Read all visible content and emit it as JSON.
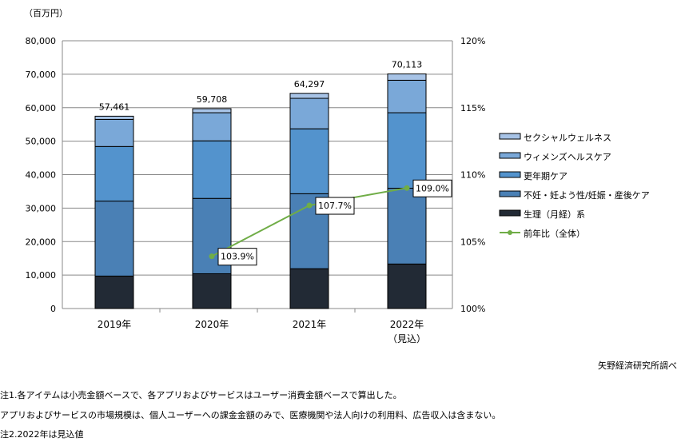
{
  "chart_data": {
    "type": "bar",
    "stacked": true,
    "yunit": "（百万円）",
    "categories": [
      "2019年",
      "2020年",
      "2021年",
      "2022年"
    ],
    "category_sublabels": [
      "",
      "",
      "",
      "（見込）"
    ],
    "ylim": [
      0,
      80000
    ],
    "yticks": [
      "0",
      "10,000",
      "20,000",
      "30,000",
      "40,000",
      "50,000",
      "60,000",
      "70,000",
      "80,000"
    ],
    "y2lim": [
      100,
      120
    ],
    "y2ticks": [
      "100%",
      "105%",
      "110%",
      "115%",
      "120%"
    ],
    "series": [
      {
        "name": "生理（月経）系",
        "color": "#222a35",
        "values": [
          9700,
          10400,
          11900,
          13300
        ]
      },
      {
        "name": "不妊・妊よう性/妊娠・産後ケア",
        "color": "#4a80b5",
        "values": [
          22400,
          22500,
          22400,
          22650
        ]
      },
      {
        "name": "更年期ケア",
        "color": "#5393cd",
        "values": [
          16300,
          17200,
          19400,
          22550
        ]
      },
      {
        "name": "ウィメンズヘルスケア",
        "color": "#7aa8d8",
        "values": [
          8100,
          8400,
          9100,
          9700
        ]
      },
      {
        "name": "セクシャルウェルネス",
        "color": "#a7c3e6",
        "values": [
          961,
          1208,
          1497,
          1913
        ]
      }
    ],
    "totals": [
      "57,461",
      "59,708",
      "64,297",
      "70,113"
    ],
    "line": {
      "name": "前年比（全体）",
      "color": "#70ad47",
      "values": [
        null,
        103.9,
        107.7,
        109.0
      ],
      "labels": [
        "",
        "103.9%",
        "107.7%",
        "109.0%"
      ]
    },
    "grid": true,
    "legend": "right"
  },
  "source": "矢野経済研究所調べ",
  "notes": [
    "注1.各アイテムは小売金額ベースで、各アプリおよびサービスはユーザー消費金額ベースで算出した。",
    "アプリおよびサービスの市場規模は、個人ユーザーへの課金金額のみで、医療機関や法人向けの利用料、広告収入は含まない。",
    "注2.2022年は見込値"
  ]
}
